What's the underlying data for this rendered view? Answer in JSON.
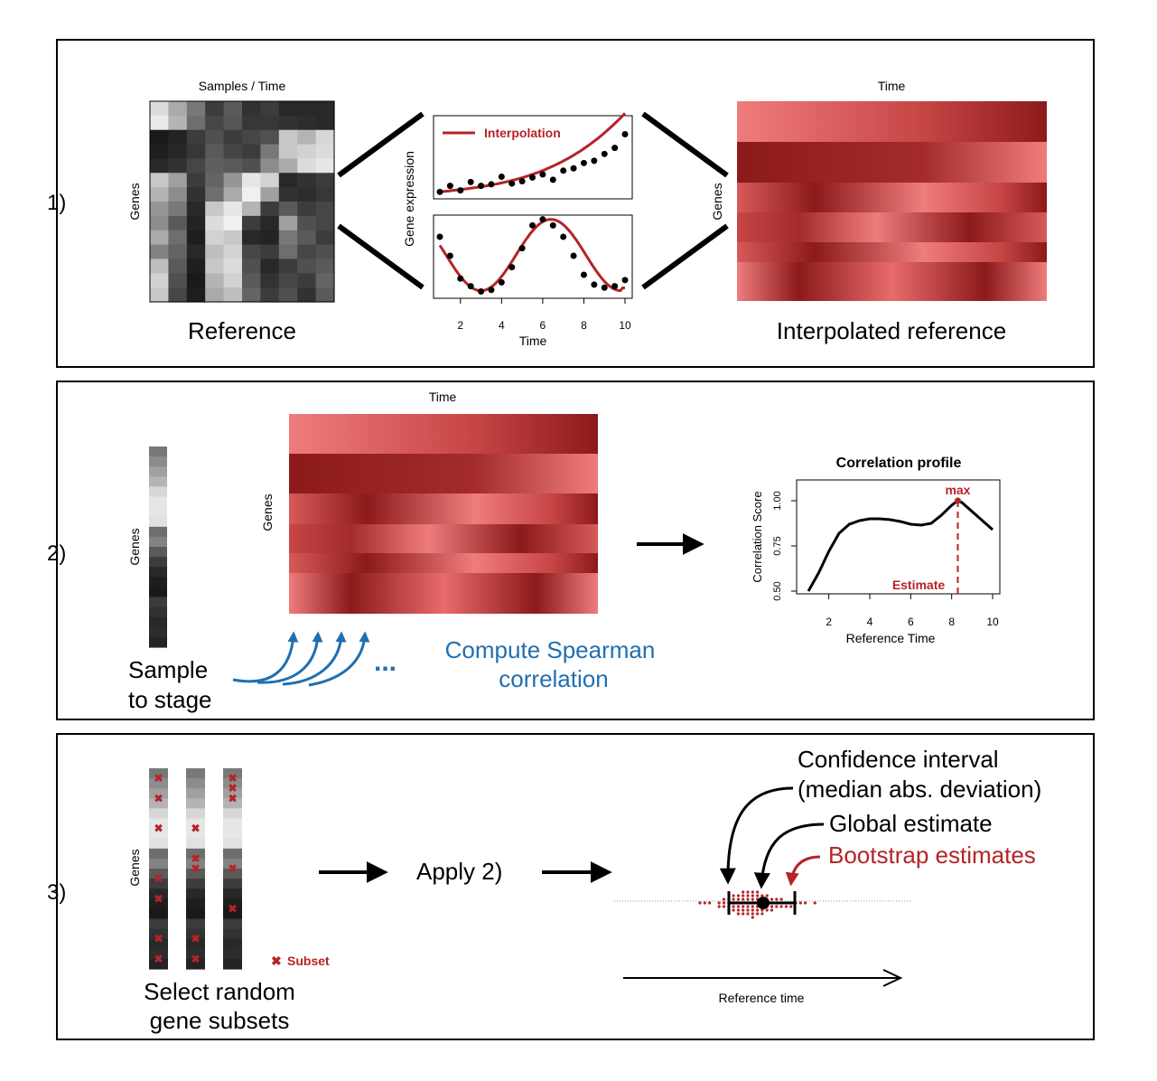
{
  "colors": {
    "dark_red": "#8c1a1a",
    "light_red": "#ef7c7c",
    "curve_red": "#b52427",
    "blue": "#1f6fb2",
    "black": "#000000"
  },
  "panel1": {
    "label": "1)",
    "heatmap_title": "Samples / Time",
    "genes_label": "Genes",
    "reference_caption": "Reference",
    "legend_label": "Interpolation",
    "y_axis_label": "Gene expression",
    "x_ticks": [
      "2",
      "4",
      "6",
      "8",
      "10"
    ],
    "x_axis_label": "Time",
    "interp_title": "Time",
    "interp_genes_label": "Genes",
    "interp_caption": "Interpolated reference"
  },
  "panel2": {
    "label": "2)",
    "genes_label": "Genes",
    "heat_title": "Time",
    "heat_genes_label": "Genes",
    "sample_caption_line1": "Sample",
    "sample_caption_line2": "to stage",
    "ellipsis": "...",
    "compute_line1": "Compute Spearman",
    "compute_line2": "correlation",
    "profile_title": "Correlation profile",
    "profile_y_label": "Correlation Score",
    "profile_y_ticks": [
      "0.50",
      "0.75",
      "1.00"
    ],
    "profile_x_ticks": [
      "2",
      "4",
      "6",
      "8",
      "10"
    ],
    "profile_x_label": "Reference Time",
    "max_label": "max",
    "estimate_label": "Estimate"
  },
  "panel3": {
    "label": "3)",
    "genes_label": "Genes",
    "subset_label": "Subset",
    "select_line1": "Select random",
    "select_line2": "gene subsets",
    "apply_label": "Apply 2)",
    "ci_line1": "Confidence interval",
    "ci_line2": "(median abs. deviation)",
    "global_label": "Global estimate",
    "bootstrap_label": "Bootstrap estimates",
    "axis_label": "Reference time"
  },
  "chart_data": [
    {
      "type": "scatter",
      "series": [
        {
          "name": "Interpolation",
          "x": [
            1,
            1.5,
            2,
            2.5,
            3,
            3.5,
            4,
            4.5,
            5,
            5.5,
            6,
            6.5,
            7,
            7.5,
            8,
            8.5,
            9,
            9.5,
            10
          ],
          "values": [
            0.02,
            0.1,
            0.04,
            0.15,
            0.1,
            0.12,
            0.22,
            0.13,
            0.16,
            0.21,
            0.25,
            0.18,
            0.3,
            0.33,
            0.4,
            0.43,
            0.52,
            0.6,
            0.78
          ]
        }
      ],
      "xlim": [
        1,
        10
      ],
      "xlabel": "",
      "ylabel": ""
    },
    {
      "type": "scatter",
      "x": [
        1,
        1.5,
        2,
        2.5,
        3,
        3.5,
        4,
        4.5,
        5,
        5.5,
        6,
        6.5,
        7,
        7.5,
        8,
        8.5,
        9,
        9.5,
        10
      ],
      "values": [
        0.75,
        0.5,
        0.2,
        0.1,
        0.03,
        0.05,
        0.15,
        0.35,
        0.6,
        0.9,
        0.98,
        0.9,
        0.75,
        0.5,
        0.25,
        0.12,
        0.08,
        0.1,
        0.18
      ],
      "xlim": [
        1,
        10
      ]
    },
    {
      "type": "line",
      "title": "Correlation profile",
      "x": [
        1,
        1.5,
        2,
        2.5,
        3,
        3.5,
        4,
        4.5,
        5,
        5.5,
        6,
        6.5,
        7,
        7.5,
        8,
        8.3,
        8.5,
        9,
        9.5,
        10
      ],
      "values": [
        0.5,
        0.6,
        0.72,
        0.82,
        0.87,
        0.89,
        0.9,
        0.9,
        0.895,
        0.885,
        0.87,
        0.865,
        0.875,
        0.92,
        0.975,
        1.0,
        0.99,
        0.94,
        0.89,
        0.84
      ],
      "xlim": [
        1,
        10
      ],
      "ylim": [
        0.5,
        1.0
      ],
      "xlabel": "Reference Time",
      "ylabel": "Correlation Score",
      "estimate_x": 8.3
    }
  ]
}
